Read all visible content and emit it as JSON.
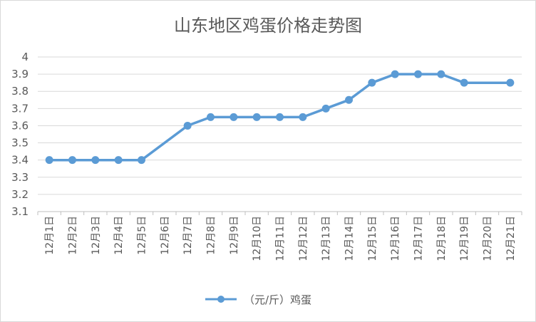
{
  "chart_data": {
    "type": "line",
    "title": "山东地区鸡蛋价格走势图",
    "categories": [
      "12月1日",
      "12月2日",
      "12月3日",
      "12月4日",
      "12月5日",
      "12月6日",
      "12月7日",
      "12月8日",
      "12月9日",
      "12月10日",
      "12月11日",
      "12月12日",
      "12月13日",
      "12月14日",
      "12月15日",
      "12月16日",
      "12月17日",
      "12月18日",
      "12月19日",
      "12月20日",
      "12月21日"
    ],
    "series": [
      {
        "name": "（元/斤）鸡蛋",
        "values": [
          3.4,
          3.4,
          3.4,
          3.4,
          3.4,
          null,
          3.6,
          3.65,
          3.65,
          3.65,
          3.65,
          3.65,
          3.7,
          3.75,
          3.85,
          3.9,
          3.9,
          3.9,
          3.85,
          null,
          3.85
        ],
        "color": "#5b9bd5"
      }
    ],
    "yticks": [
      "3.1",
      "3.2",
      "3.3",
      "3.4",
      "3.5",
      "3.6",
      "3.7",
      "3.8",
      "3.9",
      "4"
    ],
    "ylim": [
      3.1,
      4.0
    ],
    "grid": true,
    "legend": "bottom"
  }
}
